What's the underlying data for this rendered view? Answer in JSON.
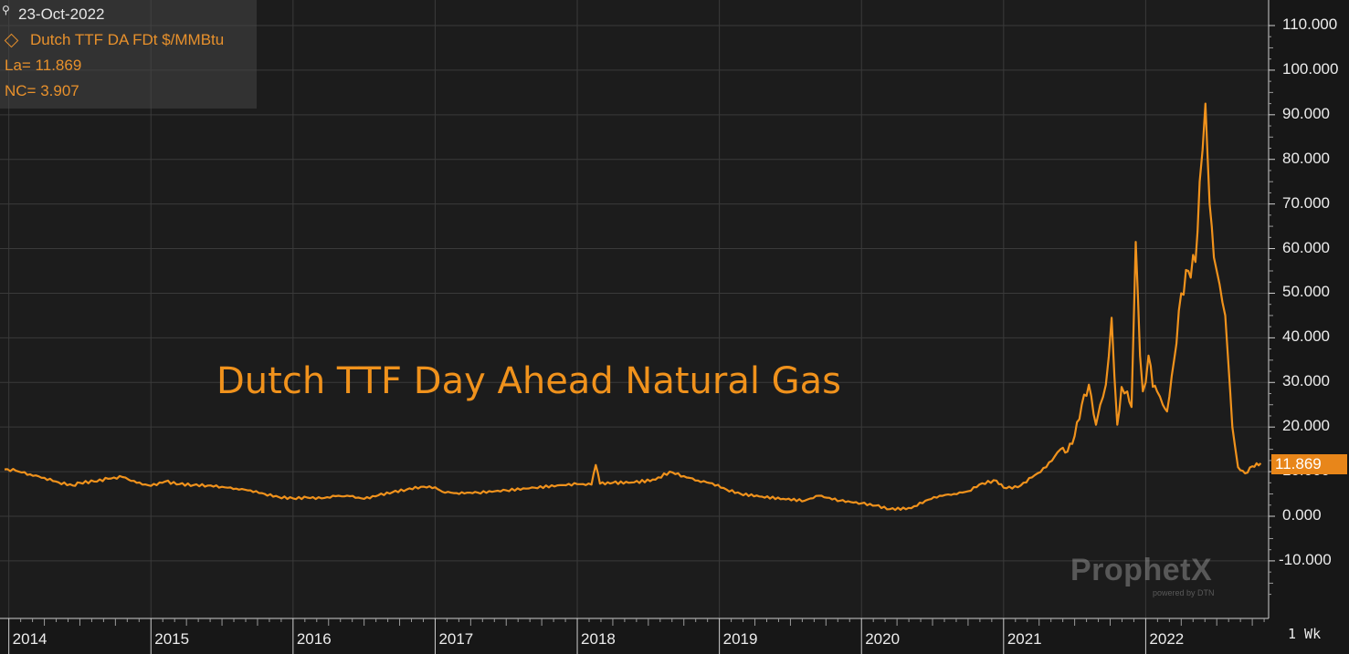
{
  "info": {
    "date": "23-Oct-2022",
    "series_label": "Dutch TTF DA FDt $/MMBtu",
    "last_label": "La= 11.869",
    "net_change_label": "NC= 3.907"
  },
  "watermark": {
    "brand": "ProphetX",
    "sub": "powered by DTN"
  },
  "interval_label": "1 Wk",
  "last_value_badge": "11.869",
  "colors": {
    "line": "#f0921c",
    "background": "#1a1a1a",
    "grid": "#3a3a3a",
    "text": "#ececec"
  },
  "chart_data": {
    "type": "line",
    "title": "Dutch TTF Day Ahead Natural Gas",
    "xlabel": "",
    "ylabel": "",
    "ylim": [
      -20,
      115
    ],
    "xlim": [
      2013.97,
      2022.82
    ],
    "y_ticks": [
      "110.000",
      "100.000",
      "90.000",
      "80.000",
      "70.000",
      "60.000",
      "50.000",
      "40.000",
      "30.000",
      "20.000",
      "10.000",
      "0.000",
      "-10.000"
    ],
    "y_tick_values": [
      110,
      100,
      90,
      80,
      70,
      60,
      50,
      40,
      30,
      20,
      10,
      0,
      -10
    ],
    "x_ticks": [
      "2014",
      "2015",
      "2016",
      "2017",
      "2018",
      "2019",
      "2020",
      "2021",
      "2022"
    ],
    "x_tick_values": [
      2014,
      2015,
      2016,
      2017,
      2018,
      2019,
      2020,
      2021,
      2022
    ],
    "grid": true,
    "series": [
      {
        "x": [
          2013.97,
          2014.05,
          2014.15,
          2014.25,
          2014.35,
          2014.45,
          2014.5,
          2014.6,
          2014.7,
          2014.8,
          2014.9,
          2015.0,
          2015.1,
          2015.2,
          2015.3,
          2015.4,
          2015.5,
          2015.6,
          2015.7,
          2015.8,
          2015.9,
          2016.0,
          2016.1,
          2016.2,
          2016.3,
          2016.4,
          2016.5,
          2016.6,
          2016.7,
          2016.8,
          2016.9,
          2017.0,
          2017.05,
          2017.15,
          2017.3,
          2017.5,
          2017.7,
          2017.9,
          2018.0,
          2018.1,
          2018.13,
          2018.16,
          2018.25,
          2018.4,
          2018.55,
          2018.65,
          2018.75,
          2018.85,
          2018.95,
          2019.05,
          2019.15,
          2019.3,
          2019.45,
          2019.6,
          2019.7,
          2019.85,
          2020.0,
          2020.1,
          2020.2,
          2020.35,
          2020.45,
          2020.55,
          2020.65,
          2020.75,
          2020.85,
          2020.95,
          2021.0,
          2021.1,
          2021.2,
          2021.3,
          2021.4,
          2021.45,
          2021.5,
          2021.55,
          2021.6,
          2021.65,
          2021.68,
          2021.72,
          2021.76,
          2021.8,
          2021.83,
          2021.87,
          2021.9,
          2021.93,
          2021.96,
          2021.98,
          2022.0,
          2022.02,
          2022.05,
          2022.08,
          2022.12,
          2022.15,
          2022.2,
          2022.25,
          2022.3,
          2022.35,
          2022.38,
          2022.42,
          2022.45,
          2022.48,
          2022.5,
          2022.52,
          2022.54,
          2022.56,
          2022.58,
          2022.61,
          2022.65,
          2022.7,
          2022.75,
          2022.78,
          2022.81
        ],
        "values": [
          10.5,
          10.2,
          9.4,
          8.6,
          7.6,
          6.9,
          7.5,
          7.8,
          8.4,
          8.8,
          7.5,
          6.8,
          7.8,
          7.2,
          7.0,
          6.9,
          6.6,
          6.2,
          5.8,
          5.0,
          4.3,
          4.0,
          4.2,
          4.0,
          4.5,
          4.5,
          3.9,
          4.7,
          5.4,
          6.0,
          6.6,
          6.5,
          5.5,
          5.2,
          5.3,
          5.8,
          6.4,
          7.0,
          7.2,
          7.1,
          11.5,
          7.3,
          7.5,
          7.6,
          8.2,
          10.0,
          9.0,
          8.0,
          7.4,
          6.0,
          5.0,
          4.4,
          3.9,
          3.5,
          4.6,
          3.5,
          2.9,
          2.4,
          1.6,
          1.8,
          3.5,
          4.6,
          5.0,
          5.6,
          7.4,
          8.0,
          6.4,
          6.5,
          8.7,
          11.0,
          15.0,
          14.5,
          18.0,
          25.0,
          29.5,
          20.5,
          25.0,
          29.5,
          44.5,
          20.5,
          29.0,
          28.0,
          24.5,
          61.5,
          36.0,
          28.0,
          30.0,
          36.0,
          29.0,
          28.0,
          25.0,
          23.5,
          35.0,
          50.0,
          55.0,
          57.0,
          75.0,
          92.5,
          70.0,
          58.0,
          55.0,
          52.0,
          48.0,
          45.0,
          35.0,
          20.0,
          11.0,
          9.6,
          11.2,
          11.869,
          11.869
        ]
      }
    ]
  }
}
